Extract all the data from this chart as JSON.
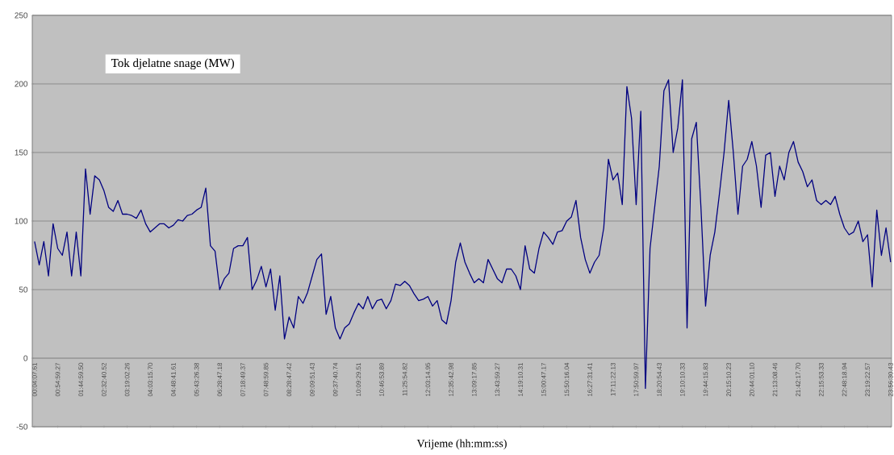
{
  "chart_data": {
    "type": "line",
    "title": "Tok djelatne snage (MW)",
    "xlabel": "Vrijeme (hh:mm:ss)",
    "categories": [
      "00:04:07.61",
      null,
      null,
      null,
      null,
      "00:54:59.27",
      null,
      null,
      null,
      null,
      "01:44:59.50",
      null,
      null,
      null,
      null,
      "02:32:40.52",
      null,
      null,
      null,
      null,
      "03:19:02.26",
      null,
      null,
      null,
      null,
      "04:03:15.70",
      null,
      null,
      null,
      null,
      "04:48:41.61",
      null,
      null,
      null,
      null,
      "05:43:26.38",
      null,
      null,
      null,
      null,
      "06:28:47.18",
      null,
      null,
      null,
      null,
      "07:18:49.37",
      null,
      null,
      null,
      null,
      "07:48:59.85",
      null,
      null,
      null,
      null,
      "08:28:47.42",
      null,
      null,
      null,
      null,
      "09:09:51.43",
      null,
      null,
      null,
      null,
      "09:37:40.74",
      null,
      null,
      null,
      null,
      "10:09:29.51",
      null,
      null,
      null,
      null,
      "10:46:53.89",
      null,
      null,
      null,
      null,
      "11:25:54.82",
      null,
      null,
      null,
      null,
      "12:03:14.95",
      null,
      null,
      null,
      null,
      "12:35:42.98",
      null,
      null,
      null,
      null,
      "13:09:17.85",
      null,
      null,
      null,
      null,
      "13:43:59.27",
      null,
      null,
      null,
      null,
      "14:19:10.31",
      null,
      null,
      null,
      null,
      "15:00:47.17",
      null,
      null,
      null,
      null,
      "15:50:16.04",
      null,
      null,
      null,
      null,
      "16:27:31.41",
      null,
      null,
      null,
      null,
      "17:11:22.13",
      null,
      null,
      null,
      null,
      "17:50:59.97",
      null,
      null,
      null,
      null,
      "18:20:54.43",
      null,
      null,
      null,
      null,
      "19:10:10.33",
      null,
      null,
      null,
      null,
      "19:44:15.83",
      null,
      null,
      null,
      null,
      "20:15:10.23",
      null,
      null,
      null,
      null,
      "20:44:01.10",
      null,
      null,
      null,
      null,
      "21:13:08.46",
      null,
      null,
      null,
      null,
      "21:42:17.70",
      null,
      null,
      null,
      null,
      "22:15:53.33",
      null,
      null,
      null,
      null,
      "22:48:18.94",
      null,
      null,
      null,
      null,
      "23:19:22.57",
      null,
      null,
      null,
      null,
      "23:56:30.43"
    ],
    "values": [
      85,
      68,
      85,
      60,
      98,
      80,
      75,
      92,
      60,
      92,
      60,
      138,
      105,
      133,
      130,
      122,
      110,
      107,
      115,
      105,
      105,
      104,
      102,
      108,
      98,
      92,
      95,
      98,
      98,
      95,
      97,
      101,
      100,
      104,
      105,
      108,
      110,
      124,
      82,
      78,
      50,
      58,
      62,
      80,
      82,
      82,
      88,
      50,
      57,
      67,
      52,
      65,
      35,
      60,
      14,
      30,
      22,
      45,
      40,
      48,
      60,
      72,
      76,
      32,
      45,
      22,
      14,
      22,
      25,
      33,
      40,
      36,
      45,
      36,
      42,
      43,
      36,
      42,
      54,
      53,
      56,
      53,
      47,
      42,
      43,
      45,
      38,
      42,
      28,
      25,
      42,
      70,
      84,
      70,
      62,
      55,
      58,
      55,
      72,
      65,
      58,
      55,
      65,
      65,
      60,
      50,
      82,
      65,
      62,
      80,
      92,
      88,
      83,
      92,
      93,
      100,
      103,
      115,
      88,
      72,
      62,
      70,
      75,
      95,
      145,
      130,
      135,
      112,
      198,
      175,
      112,
      180,
      -22,
      80,
      110,
      140,
      195,
      203,
      150,
      168,
      203,
      22,
      160,
      172,
      110,
      38,
      75,
      92,
      120,
      150,
      188,
      150,
      105,
      140,
      145,
      158,
      140,
      110,
      148,
      150,
      118,
      140,
      130,
      150,
      158,
      143,
      136,
      125,
      130,
      115,
      112,
      115,
      112,
      118,
      105,
      95,
      90,
      92,
      100,
      85,
      90,
      52,
      108,
      75,
      95,
      70
    ],
    "color": "#000080",
    "ylim": [
      -50,
      250
    ],
    "yticks": [
      -50,
      0,
      50,
      100,
      150,
      200,
      250
    ],
    "grid": "y"
  }
}
